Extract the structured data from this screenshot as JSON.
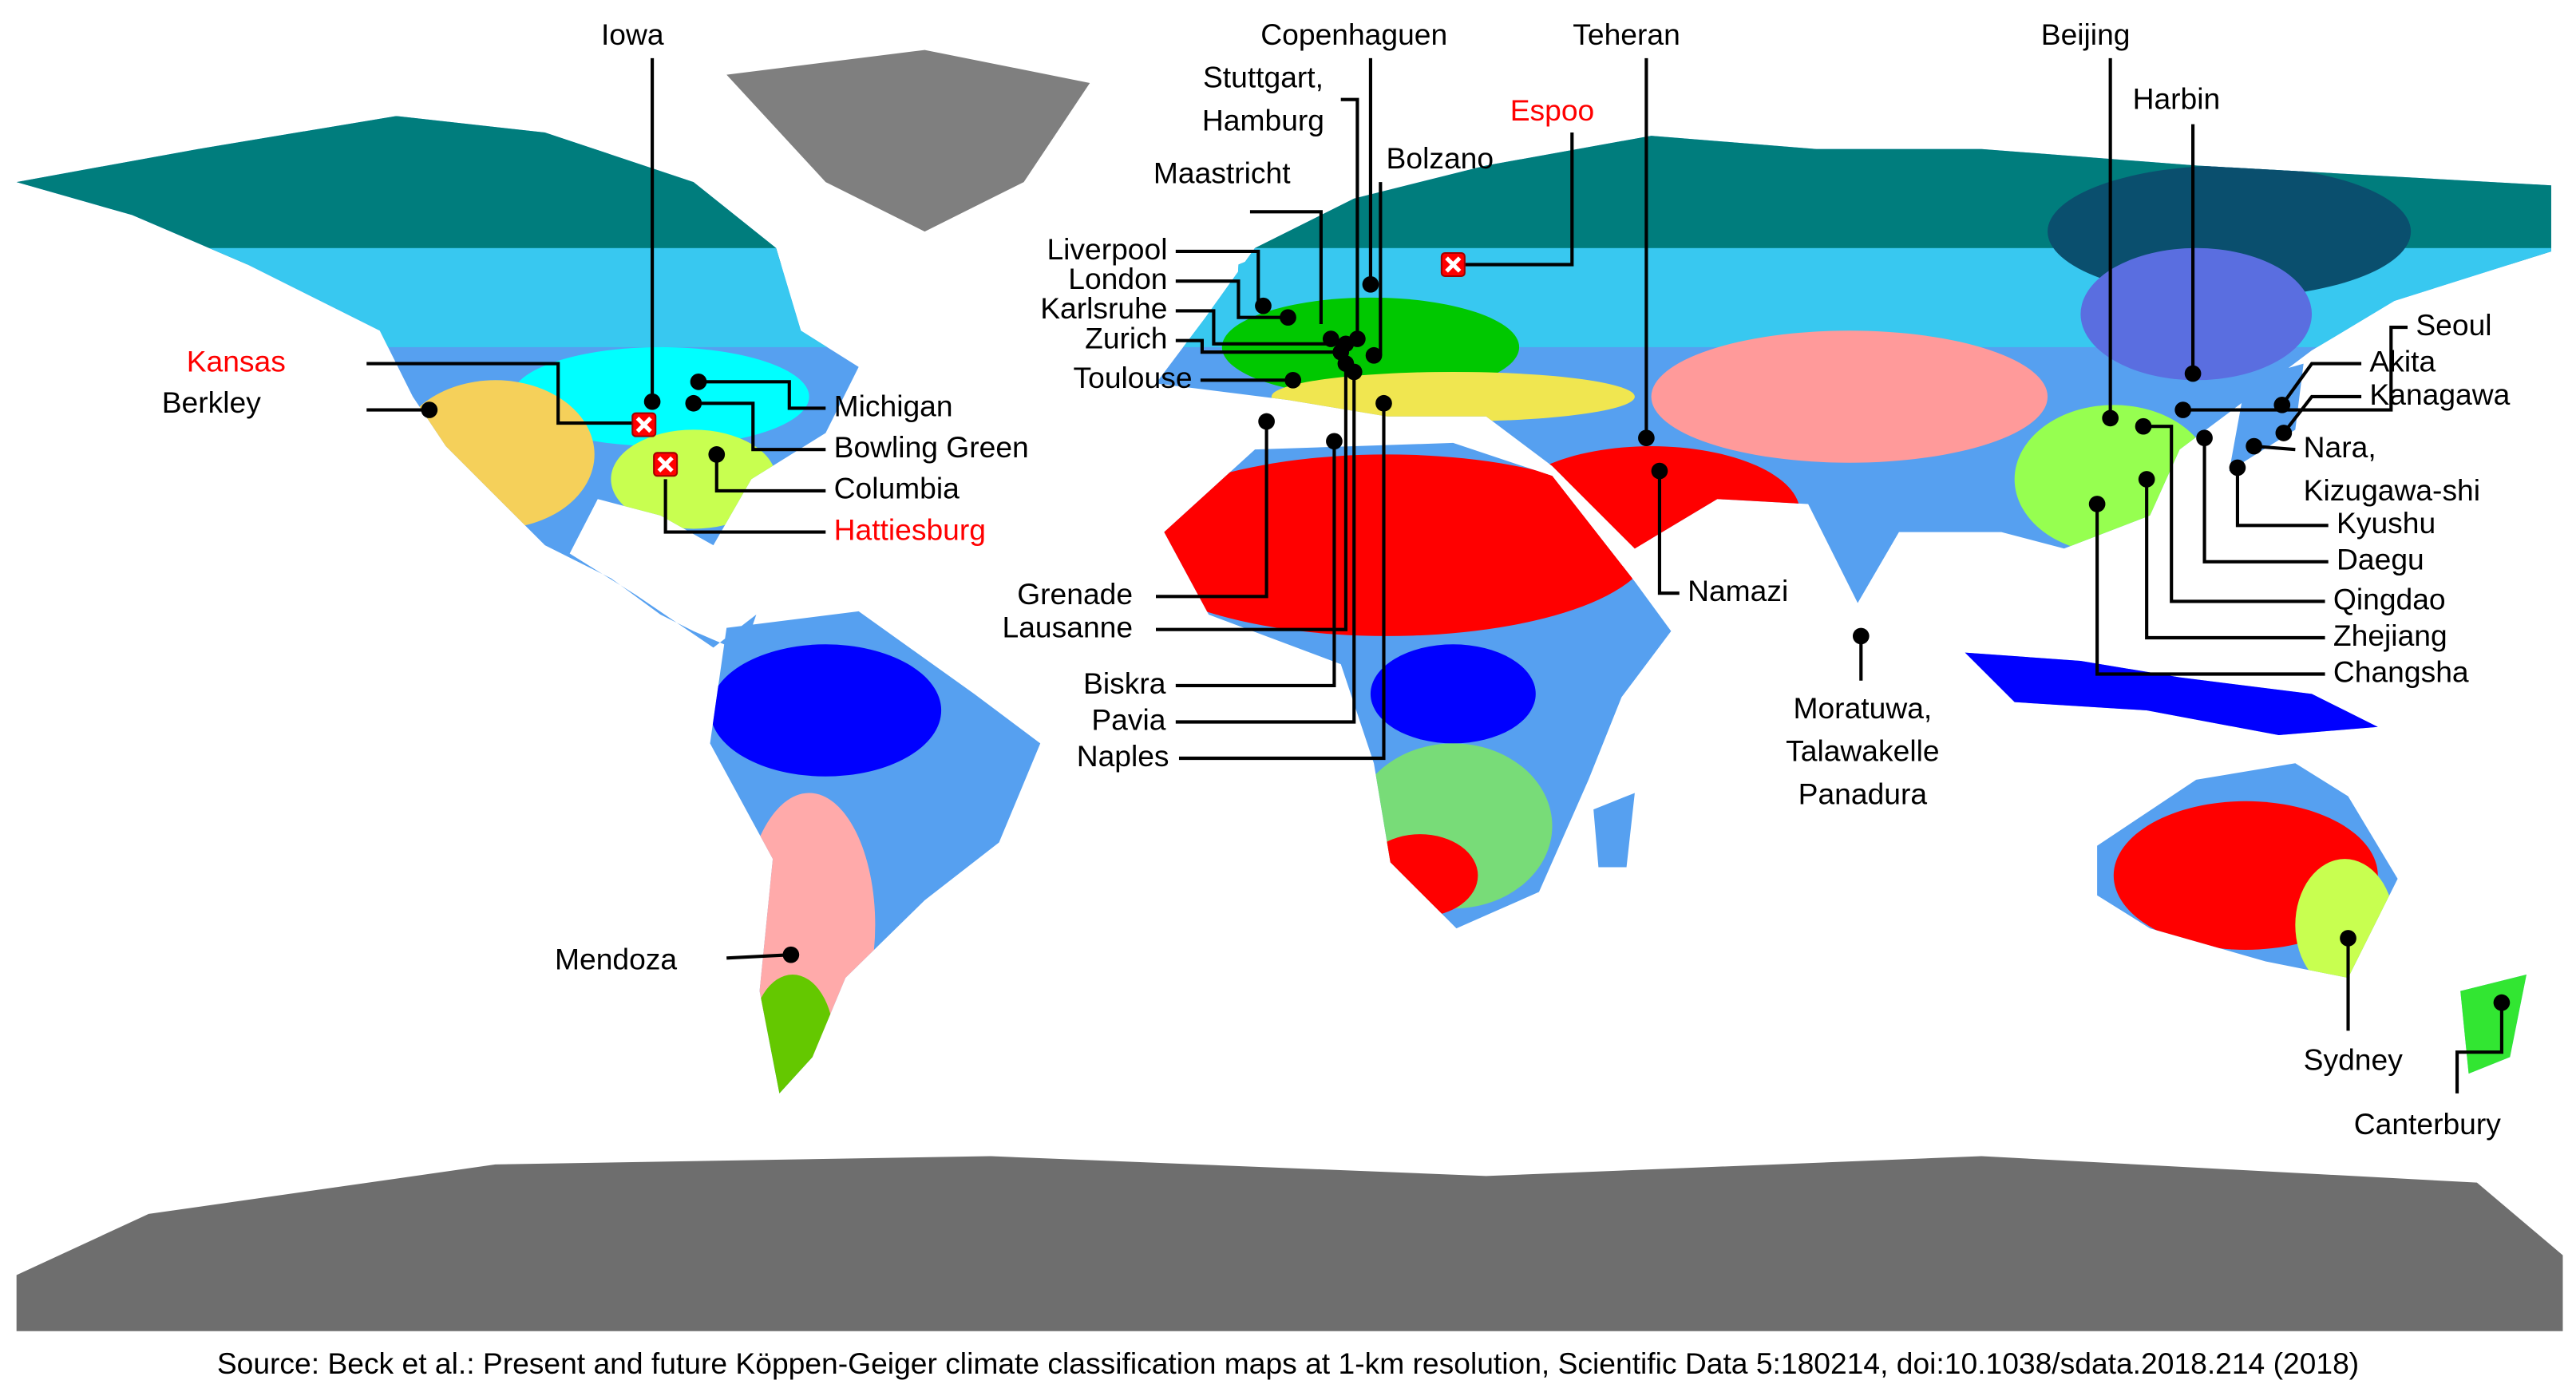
{
  "locations": [
    {
      "label": [
        "Iowa"
      ],
      "color": "#000000"
    },
    {
      "label": [
        "Kansas"
      ],
      "color": "#ff0000"
    },
    {
      "label": [
        "Berkley"
      ],
      "color": "#000000"
    },
    {
      "label": [
        "Michigan"
      ],
      "color": "#000000"
    },
    {
      "label": [
        "Bowling Green"
      ],
      "color": "#000000"
    },
    {
      "label": [
        "Columbia"
      ],
      "color": "#000000"
    },
    {
      "label": [
        "Hattiesburg"
      ],
      "color": "#ff0000"
    },
    {
      "label": [
        "Mendoza"
      ],
      "color": "#000000"
    },
    {
      "label": [
        "Copenhaguen"
      ],
      "color": "#000000"
    },
    {
      "label": [
        "Stuttgart,",
        "Hamburg"
      ],
      "color": "#000000"
    },
    {
      "label": [
        "Maastricht"
      ],
      "color": "#000000"
    },
    {
      "label": [
        "Bolzano"
      ],
      "color": "#000000"
    },
    {
      "label": [
        "Liverpool"
      ],
      "color": "#000000"
    },
    {
      "label": [
        "London"
      ],
      "color": "#000000"
    },
    {
      "label": [
        "Karlsruhe"
      ],
      "color": "#000000"
    },
    {
      "label": [
        "Zurich"
      ],
      "color": "#000000"
    },
    {
      "label": [
        "Toulouse"
      ],
      "color": "#000000"
    },
    {
      "label": [
        "Grenade"
      ],
      "color": "#000000"
    },
    {
      "label": [
        "Lausanne"
      ],
      "color": "#000000"
    },
    {
      "label": [
        "Biskra"
      ],
      "color": "#000000"
    },
    {
      "label": [
        "Pavia"
      ],
      "color": "#000000"
    },
    {
      "label": [
        "Naples"
      ],
      "color": "#000000"
    },
    {
      "label": [
        "Teheran"
      ],
      "color": "#000000"
    },
    {
      "label": [
        "Espoo"
      ],
      "color": "#ff0000"
    },
    {
      "label": [
        "Namazi"
      ],
      "color": "#000000"
    },
    {
      "label": [
        "Moratuwa,",
        "Talawakelle",
        "Panadura"
      ],
      "color": "#000000"
    },
    {
      "label": [
        "Beijing"
      ],
      "color": "#000000"
    },
    {
      "label": [
        "Harbin"
      ],
      "color": "#000000"
    },
    {
      "label": [
        "Seoul"
      ],
      "color": "#000000"
    },
    {
      "label": [
        "Akita"
      ],
      "color": "#000000"
    },
    {
      "label": [
        "Kanagawa"
      ],
      "color": "#000000"
    },
    {
      "label": [
        "Nara,",
        "Kizugawa-shi"
      ],
      "color": "#000000"
    },
    {
      "label": [
        "Kyushu"
      ],
      "color": "#000000"
    },
    {
      "label": [
        "Daegu"
      ],
      "color": "#000000"
    },
    {
      "label": [
        "Qingdao"
      ],
      "color": "#000000"
    },
    {
      "label": [
        "Zhejiang"
      ],
      "color": "#000000"
    },
    {
      "label": [
        "Changsha"
      ],
      "color": "#000000"
    },
    {
      "label": [
        "Sydney"
      ],
      "color": "#000000"
    },
    {
      "label": [
        "Canterbury"
      ],
      "color": "#000000"
    }
  ],
  "source": "Source: Beck et al.: Present and future Köppen-Geiger climate classification maps at 1-km resolution, Scientific Data 5:180214, doi:10.1038/sdata.2018.214 (2018)"
}
